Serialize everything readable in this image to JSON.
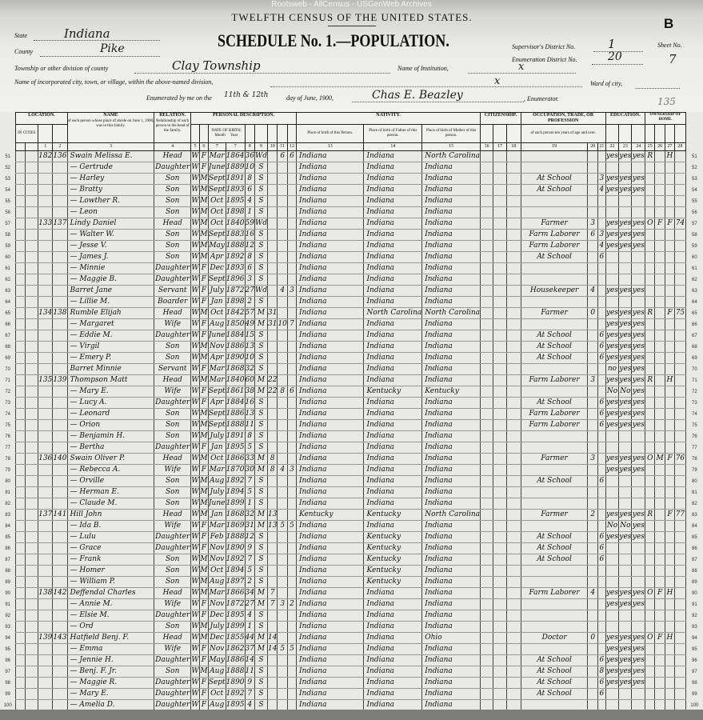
{
  "watermark": "Rootsweb - AllCensus - USGenWeb Archives",
  "header": {
    "title": "TWELFTH CENSUS OF THE UNITED STATES.",
    "schedule": "SCHEDULE No. 1.—POPULATION.",
    "sheet_letter": "B",
    "state_label": "State",
    "state": "Indiana",
    "county_label": "County",
    "county": "Pike",
    "township_label": "Township or other division of county",
    "township": "Clay Township",
    "institution_label": "Name of Institution,",
    "institution": "x",
    "city_label": "Name of incorporated city, town, or village, within the above-named division,",
    "city": "x",
    "ward_label": "Ward of city,",
    "enumerated_label_1": "Enumerated by me on the",
    "enumerated_day": "11th & 12th",
    "enumerated_label_2": "day of June, 1900,",
    "enumerator": "Chas E. Beazley",
    "enumerator_label": ", Enumerator.",
    "supervisor_label": "Supervisor's District No.",
    "supervisor_district": "1",
    "enumeration_label": "Enumeration District No.",
    "enumeration_district": "20",
    "sheet_label": "Sheet No.",
    "sheet_no": "7",
    "margin_note": "135"
  },
  "columns": {
    "location": "LOCATION.",
    "in_cities": "IN CITIES.",
    "name": "NAME",
    "name_sub": "of each person whose place of abode on June 1, 1900, was in this family.",
    "relation": "RELATION.",
    "relation_sub": "Relationship of each person to the head of the family.",
    "personal": "PERSONAL DESCRIPTION.",
    "dob": "DATE OF BIRTH.",
    "month": "Month",
    "year": "Year",
    "nativity": "NATIVITY.",
    "nat_person": "Place of birth of this Person.",
    "nat_father": "Place of birth of Father of this person.",
    "nat_mother": "Place of birth of Mother of this person.",
    "citizenship": "CITIZENSHIP.",
    "occupation": "OCCUPATION, TRADE, OR PROFESSION",
    "occupation_sub": "of each person ten years of age and over.",
    "education": "EDUCATION.",
    "ownership": "OWNERSHIP OF HOME.",
    "numbers": [
      "1",
      "2",
      "3",
      "4",
      "5",
      "6",
      "7",
      "7",
      "8",
      "9",
      "10",
      "11",
      "12",
      "13",
      "14",
      "15",
      "16",
      "17",
      "18",
      "19",
      "20",
      "21",
      "22",
      "23",
      "24",
      "25",
      "26",
      "27",
      "28"
    ]
  },
  "rows": [
    [
      "51",
      "182",
      "136",
      "Swain Melissa E.",
      "Head",
      "W",
      "F",
      "Mar",
      "1864",
      "36",
      "Wd",
      "",
      "6",
      "6",
      "Indiana",
      "Indiana",
      "North Carolina",
      "",
      "",
      "",
      "yes",
      "yes",
      "yes",
      "R",
      "",
      "H",
      ""
    ],
    [
      "52",
      "",
      "",
      "— Gertrude",
      "Daughter",
      "W",
      "F",
      "June",
      "1889",
      "10",
      "S",
      "",
      "",
      "",
      "Indiana",
      "Indiana",
      "Indiana",
      "",
      "",
      "",
      "",
      "",
      "",
      "",
      "",
      "",
      ""
    ],
    [
      "53",
      "",
      "",
      "— Harley",
      "Son",
      "W",
      "M",
      "Sept",
      "1891",
      "8",
      "S",
      "",
      "",
      "",
      "Indiana",
      "Indiana",
      "Indiana",
      "At School",
      "",
      "3",
      "yes",
      "yes",
      "yes",
      "",
      "",
      "",
      ""
    ],
    [
      "54",
      "",
      "",
      "— Bratty",
      "Son",
      "W",
      "M",
      "Sept",
      "1893",
      "6",
      "S",
      "",
      "",
      "",
      "Indiana",
      "Indiana",
      "Indiana",
      "At School",
      "",
      "4",
      "yes",
      "yes",
      "yes",
      "",
      "",
      "",
      ""
    ],
    [
      "55",
      "",
      "",
      "— Lowther R.",
      "Son",
      "W",
      "M",
      "Oct",
      "1895",
      "4",
      "S",
      "",
      "",
      "",
      "Indiana",
      "Indiana",
      "Indiana",
      "",
      "",
      "",
      "",
      "",
      "",
      "",
      "",
      "",
      ""
    ],
    [
      "56",
      "",
      "",
      "— Leon",
      "Son",
      "W",
      "M",
      "Oct",
      "1898",
      "1",
      "S",
      "",
      "",
      "",
      "Indiana",
      "Indiana",
      "Indiana",
      "",
      "",
      "",
      "",
      "",
      "",
      "",
      "",
      "",
      ""
    ],
    [
      "57",
      "133",
      "137",
      "Lindy Daniel",
      "Head",
      "W",
      "M",
      "Oct",
      "1840",
      "59",
      "Wd",
      "",
      "",
      "",
      "Indiana",
      "Indiana",
      "Indiana",
      "Farmer",
      "3",
      "",
      "yes",
      "yes",
      "yes",
      "O",
      "F",
      "F",
      "74"
    ],
    [
      "58",
      "",
      "",
      "— Walter W.",
      "Son",
      "W",
      "M",
      "Sept",
      "1883",
      "16",
      "S",
      "",
      "",
      "",
      "Indiana",
      "Indiana",
      "Indiana",
      "Farm Laborer",
      "6",
      "3",
      "yes",
      "yes",
      "yes",
      "",
      "",
      "",
      ""
    ],
    [
      "59",
      "",
      "",
      "— Jesse V.",
      "Son",
      "W",
      "M",
      "May",
      "1888",
      "12",
      "S",
      "",
      "",
      "",
      "Indiana",
      "Indiana",
      "Indiana",
      "Farm Laborer",
      "",
      "4",
      "yes",
      "yes",
      "yes",
      "",
      "",
      "",
      ""
    ],
    [
      "60",
      "",
      "",
      "— James J.",
      "Son",
      "W",
      "M",
      "Apr",
      "1892",
      "8",
      "S",
      "",
      "",
      "",
      "Indiana",
      "Indiana",
      "Indiana",
      "At School",
      "",
      "6",
      "",
      "",
      "",
      "",
      "",
      "",
      ""
    ],
    [
      "61",
      "",
      "",
      "— Minnie",
      "Daughter",
      "W",
      "F",
      "Dec",
      "1893",
      "6",
      "S",
      "",
      "",
      "",
      "Indiana",
      "Indiana",
      "Indiana",
      "",
      "",
      "",
      "",
      "",
      "",
      "",
      "",
      "",
      ""
    ],
    [
      "62",
      "",
      "",
      "— Maggie B.",
      "Daughter",
      "W",
      "F",
      "Sept",
      "1896",
      "3",
      "S",
      "",
      "",
      "",
      "Indiana",
      "Indiana",
      "Indiana",
      "",
      "",
      "",
      "",
      "",
      "",
      "",
      "",
      "",
      ""
    ],
    [
      "63",
      "",
      "",
      "Barret Jane",
      "Servant",
      "W",
      "F",
      "July",
      "1872",
      "27",
      "Wd",
      "",
      "4",
      "3",
      "Indiana",
      "Indiana",
      "Indiana",
      "Housekeeper",
      "4",
      "",
      "yes",
      "yes",
      "yes",
      "",
      "",
      "",
      ""
    ],
    [
      "64",
      "",
      "",
      "— Lillie M.",
      "Boarder",
      "W",
      "F",
      "Jan",
      "1898",
      "2",
      "S",
      "",
      "",
      "",
      "Indiana",
      "Indiana",
      "Indiana",
      "",
      "",
      "",
      "",
      "",
      "",
      "",
      "",
      "",
      ""
    ],
    [
      "65",
      "134",
      "138",
      "Rumble Elijah",
      "Head",
      "W",
      "M",
      "Oct",
      "1842",
      "57",
      "M",
      "31",
      "",
      "",
      "Indiana",
      "North Carolina",
      "North Carolina",
      "Farmer",
      "0",
      "",
      "yes",
      "yes",
      "yes",
      "R",
      "",
      "F",
      "75"
    ],
    [
      "66",
      "",
      "",
      "— Margaret",
      "Wife",
      "W",
      "F",
      "Aug",
      "1850",
      "49",
      "M",
      "31",
      "10",
      "7",
      "Indiana",
      "Indiana",
      "Indiana",
      "",
      "",
      "",
      "yes",
      "yes",
      "yes",
      "",
      "",
      "",
      ""
    ],
    [
      "67",
      "",
      "",
      "— Eddie M.",
      "Daughter",
      "W",
      "F",
      "June",
      "1884",
      "15",
      "S",
      "",
      "",
      "",
      "Indiana",
      "Indiana",
      "Indiana",
      "At School",
      "",
      "6",
      "yes",
      "yes",
      "yes",
      "",
      "",
      "",
      ""
    ],
    [
      "68",
      "",
      "",
      "— Virgil",
      "Son",
      "W",
      "M",
      "Nov",
      "1886",
      "13",
      "S",
      "",
      "",
      "",
      "Indiana",
      "Indiana",
      "Indiana",
      "At School",
      "",
      "6",
      "yes",
      "yes",
      "yes",
      "",
      "",
      "",
      ""
    ],
    [
      "69",
      "",
      "",
      "— Emery P.",
      "Son",
      "W",
      "M",
      "Apr",
      "1890",
      "10",
      "S",
      "",
      "",
      "",
      "Indiana",
      "Indiana",
      "Indiana",
      "At School",
      "",
      "6",
      "yes",
      "yes",
      "yes",
      "",
      "",
      "",
      ""
    ],
    [
      "70",
      "",
      "",
      "Barret Minnie",
      "Servant",
      "W",
      "F",
      "Mar",
      "1868",
      "32",
      "S",
      "",
      "",
      "",
      "Indiana",
      "Indiana",
      "Indiana",
      "",
      "",
      "",
      "no",
      "yes",
      "yes",
      "",
      "",
      "",
      ""
    ],
    [
      "71",
      "135",
      "139",
      "Thompson Matt",
      "Head",
      "W",
      "M",
      "Mar",
      "1840",
      "60",
      "M",
      "22",
      "",
      "",
      "Indiana",
      "Indiana",
      "Indiana",
      "Farm Laborer",
      "3",
      "",
      "yes",
      "yes",
      "yes",
      "R",
      "",
      "H",
      ""
    ],
    [
      "72",
      "",
      "",
      "— Mary E.",
      "Wife",
      "W",
      "F",
      "Sept",
      "1861",
      "38",
      "M",
      "22",
      "8",
      "6",
      "Indiana",
      "Kentucky",
      "Kentucky",
      "",
      "",
      "",
      "No",
      "No",
      "yes",
      "",
      "",
      "",
      ""
    ],
    [
      "73",
      "",
      "",
      "— Lucy A.",
      "Daughter",
      "W",
      "F",
      "Apr",
      "1884",
      "16",
      "S",
      "",
      "",
      "",
      "Indiana",
      "Indiana",
      "Indiana",
      "At School",
      "",
      "6",
      "yes",
      "yes",
      "yes",
      "",
      "",
      "",
      ""
    ],
    [
      "74",
      "",
      "",
      "— Leonard",
      "Son",
      "W",
      "M",
      "Sept",
      "1886",
      "13",
      "S",
      "",
      "",
      "",
      "Indiana",
      "Indiana",
      "Indiana",
      "Farm Laborer",
      "",
      "6",
      "yes",
      "yes",
      "yes",
      "",
      "",
      "",
      ""
    ],
    [
      "75",
      "",
      "",
      "— Orion",
      "Son",
      "W",
      "M",
      "Sept",
      "1888",
      "11",
      "S",
      "",
      "",
      "",
      "Indiana",
      "Indiana",
      "Indiana",
      "Farm Laborer",
      "",
      "6",
      "yes",
      "yes",
      "yes",
      "",
      "",
      "",
      ""
    ],
    [
      "76",
      "",
      "",
      "— Benjamin H.",
      "Son",
      "W",
      "M",
      "July",
      "1891",
      "8",
      "S",
      "",
      "",
      "",
      "Indiana",
      "Indiana",
      "Indiana",
      "",
      "",
      "",
      "",
      "",
      "",
      "",
      "",
      "",
      ""
    ],
    [
      "77",
      "",
      "",
      "— Bertha",
      "Daughter",
      "W",
      "F",
      "Jan",
      "1895",
      "5",
      "S",
      "",
      "",
      "",
      "Indiana",
      "Indiana",
      "Indiana",
      "",
      "",
      "",
      "",
      "",
      "",
      "",
      "",
      "",
      ""
    ],
    [
      "78",
      "136",
      "140",
      "Swain Oliver P.",
      "Head",
      "W",
      "M",
      "Oct",
      "1866",
      "33",
      "M",
      "8",
      "",
      "",
      "Indiana",
      "Indiana",
      "Indiana",
      "Farmer",
      "3",
      "",
      "yes",
      "yes",
      "yes",
      "O",
      "M",
      "F",
      "76"
    ],
    [
      "79",
      "",
      "",
      "— Rebecca A.",
      "Wife",
      "W",
      "F",
      "Mar",
      "1870",
      "30",
      "M",
      "8",
      "4",
      "3",
      "Indiana",
      "Indiana",
      "Indiana",
      "",
      "",
      "",
      "yes",
      "yes",
      "yes",
      "",
      "",
      "",
      ""
    ],
    [
      "80",
      "",
      "",
      "— Orville",
      "Son",
      "W",
      "M",
      "Aug",
      "1892",
      "7",
      "S",
      "",
      "",
      "",
      "Indiana",
      "Indiana",
      "Indiana",
      "At School",
      "",
      "6",
      "",
      "",
      "",
      "",
      "",
      "",
      ""
    ],
    [
      "81",
      "",
      "",
      "— Herman E.",
      "Son",
      "W",
      "M",
      "July",
      "1894",
      "5",
      "S",
      "",
      "",
      "",
      "Indiana",
      "Indiana",
      "Indiana",
      "",
      "",
      "",
      "",
      "",
      "",
      "",
      "",
      "",
      ""
    ],
    [
      "82",
      "",
      "",
      "— Claude M.",
      "Son",
      "W",
      "M",
      "June",
      "1899",
      "1",
      "S",
      "",
      "",
      "",
      "Indiana",
      "Indiana",
      "Indiana",
      "",
      "",
      "",
      "",
      "",
      "",
      "",
      "",
      "",
      ""
    ],
    [
      "83",
      "137",
      "141",
      "Hill John",
      "Head",
      "W",
      "M",
      "Jan",
      "1868",
      "32",
      "M",
      "13",
      "",
      "",
      "Kentucky",
      "Kentucky",
      "North Carolina",
      "Farmer",
      "2",
      "",
      "yes",
      "yes",
      "yes",
      "R",
      "",
      "F",
      "77"
    ],
    [
      "84",
      "",
      "",
      "— Ida B.",
      "Wife",
      "W",
      "F",
      "Mar",
      "1869",
      "31",
      "M",
      "13",
      "5",
      "5",
      "Indiana",
      "Indiana",
      "Indiana",
      "",
      "",
      "",
      "No",
      "No",
      "yes",
      "",
      "",
      "",
      ""
    ],
    [
      "85",
      "",
      "",
      "— Lulu",
      "Daughter",
      "W",
      "F",
      "Feb",
      "1888",
      "12",
      "S",
      "",
      "",
      "",
      "Indiana",
      "Kentucky",
      "Indiana",
      "At School",
      "",
      "6",
      "yes",
      "yes",
      "yes",
      "",
      "",
      "",
      ""
    ],
    [
      "86",
      "",
      "",
      "— Grace",
      "Daughter",
      "W",
      "F",
      "Nov",
      "1890",
      "9",
      "S",
      "",
      "",
      "",
      "Indiana",
      "Kentucky",
      "Indiana",
      "At School",
      "",
      "6",
      "",
      "",
      "",
      "",
      "",
      "",
      ""
    ],
    [
      "87",
      "",
      "",
      "— Frank",
      "Son",
      "W",
      "M",
      "Nov",
      "1892",
      "7",
      "S",
      "",
      "",
      "",
      "Indiana",
      "Kentucky",
      "Indiana",
      "At School",
      "",
      "6",
      "",
      "",
      "",
      "",
      "",
      "",
      ""
    ],
    [
      "88",
      "",
      "",
      "— Homer",
      "Son",
      "W",
      "M",
      "Oct",
      "1894",
      "5",
      "S",
      "",
      "",
      "",
      "Indiana",
      "Kentucky",
      "Indiana",
      "",
      "",
      "",
      "",
      "",
      "",
      "",
      "",
      "",
      ""
    ],
    [
      "89",
      "",
      "",
      "— William P.",
      "Son",
      "W",
      "M",
      "Aug",
      "1897",
      "2",
      "S",
      "",
      "",
      "",
      "Indiana",
      "Kentucky",
      "Indiana",
      "",
      "",
      "",
      "",
      "",
      "",
      "",
      "",
      "",
      ""
    ],
    [
      "90",
      "138",
      "142",
      "Deffendal Charles",
      "Head",
      "W",
      "M",
      "Mar",
      "1866",
      "34",
      "M",
      "7",
      "",
      "",
      "Indiana",
      "Indiana",
      "Indiana",
      "Farm Laborer",
      "4",
      "",
      "yes",
      "yes",
      "yes",
      "O",
      "F",
      "H",
      ""
    ],
    [
      "91",
      "",
      "",
      "— Annie M.",
      "Wife",
      "W",
      "F",
      "Nov",
      "1872",
      "27",
      "M",
      "7",
      "3",
      "2",
      "Indiana",
      "Indiana",
      "Indiana",
      "",
      "",
      "",
      "yes",
      "yes",
      "yes",
      "",
      "",
      "",
      ""
    ],
    [
      "92",
      "",
      "",
      "— Elsie M.",
      "Daughter",
      "W",
      "F",
      "Dec",
      "1895",
      "4",
      "S",
      "",
      "",
      "",
      "Indiana",
      "Indiana",
      "Indiana",
      "",
      "",
      "",
      "",
      "",
      "",
      "",
      "",
      "",
      ""
    ],
    [
      "93",
      "",
      "",
      "— Ord",
      "Son",
      "W",
      "M",
      "July",
      "1899",
      "1",
      "S",
      "",
      "",
      "",
      "Indiana",
      "Indiana",
      "Indiana",
      "",
      "",
      "",
      "",
      "",
      "",
      "",
      "",
      "",
      ""
    ],
    [
      "94",
      "139",
      "143",
      "Hatfield Benj. F.",
      "Head",
      "W",
      "M",
      "Dec",
      "1855",
      "44",
      "M",
      "14",
      "",
      "",
      "Indiana",
      "Indiana",
      "Ohio",
      "Doctor",
      "0",
      "",
      "yes",
      "yes",
      "yes",
      "O",
      "F",
      "H",
      ""
    ],
    [
      "95",
      "",
      "",
      "— Emma",
      "Wife",
      "W",
      "F",
      "Nov",
      "1862",
      "37",
      "M",
      "14",
      "5",
      "5",
      "Indiana",
      "Indiana",
      "Indiana",
      "",
      "",
      "",
      "yes",
      "yes",
      "yes",
      "",
      "",
      "",
      ""
    ],
    [
      "96",
      "",
      "",
      "— Jennie H.",
      "Daughter",
      "W",
      "F",
      "May",
      "1886",
      "14",
      "S",
      "",
      "",
      "",
      "Indiana",
      "Indiana",
      "Indiana",
      "At School",
      "",
      "6",
      "yes",
      "yes",
      "yes",
      "",
      "",
      "",
      ""
    ],
    [
      "97",
      "",
      "",
      "— Benj. F. Jr.",
      "Son",
      "W",
      "M",
      "Aug",
      "1888",
      "11",
      "S",
      "",
      "",
      "",
      "Indiana",
      "Indiana",
      "Indiana",
      "At School",
      "",
      "8",
      "yes",
      "yes",
      "yes",
      "",
      "",
      "",
      ""
    ],
    [
      "98",
      "",
      "",
      "— Maggie R.",
      "Daughter",
      "W",
      "F",
      "Sept",
      "1890",
      "9",
      "S",
      "",
      "",
      "",
      "Indiana",
      "Indiana",
      "Indiana",
      "At School",
      "",
      "6",
      "yes",
      "yes",
      "yes",
      "",
      "",
      "",
      ""
    ],
    [
      "99",
      "",
      "",
      "— Mary E.",
      "Daughter",
      "W",
      "F",
      "Oct",
      "1892",
      "7",
      "S",
      "",
      "",
      "",
      "Indiana",
      "Indiana",
      "Indiana",
      "At School",
      "",
      "6",
      "",
      "",
      "",
      "",
      "",
      "",
      ""
    ],
    [
      "100",
      "",
      "",
      "— Amelia D.",
      "Daughter",
      "W",
      "F",
      "Aug",
      "1895",
      "4",
      "S",
      "",
      "",
      "",
      "Indiana",
      "Indiana",
      "Indiana",
      "",
      "",
      "",
      "",
      "",
      "",
      "",
      "",
      "",
      ""
    ]
  ]
}
